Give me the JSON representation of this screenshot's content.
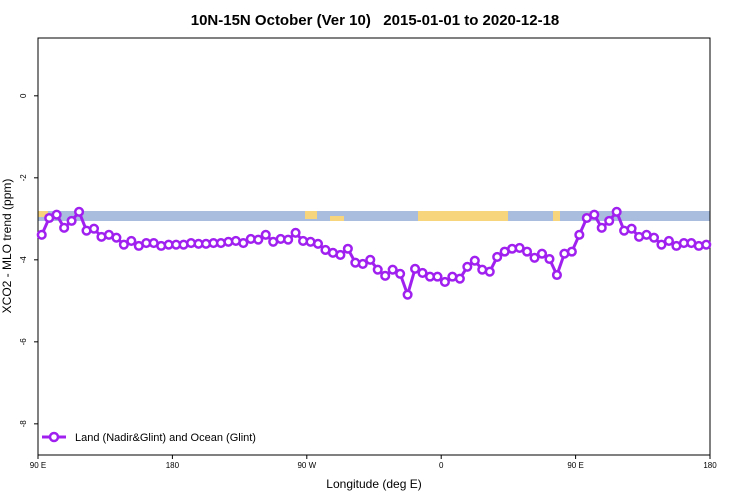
{
  "chart_data": {
    "type": "line",
    "title": "10N-15N October (Ver 10)   2015-01-01 to 2020-12-18",
    "x_label": "Longitude (deg E)",
    "y_label": "XCO2 - MLO trend (ppm)",
    "x": [
      92.5,
      97.5,
      102.5,
      107.5,
      112.5,
      117.5,
      122.5,
      127.5,
      132.5,
      137.5,
      142.5,
      147.5,
      152.5,
      157.5,
      162.5,
      167.5,
      172.5,
      177.5,
      182.5,
      187.5,
      192.5,
      197.5,
      202.5,
      207.5,
      212.5,
      217.5,
      222.5,
      227.5,
      232.5,
      237.5,
      242.5,
      247.5,
      252.5,
      257.5,
      262.5,
      267.5,
      272.5,
      277.5,
      282.5,
      287.5,
      292.5,
      297.5,
      302.5,
      307.5,
      312.5,
      317.5,
      322.5,
      327.5,
      332.5,
      337.5,
      342.5,
      347.5,
      352.5,
      357.5,
      362.5,
      367.5,
      372.5,
      377.5,
      382.5,
      387.5,
      392.5,
      397.5,
      402.5,
      407.5,
      412.5,
      417.5,
      422.5,
      427.5,
      432.5,
      437.5,
      442.5,
      447.5,
      452.5,
      457.5,
      462.5,
      467.5,
      472.5,
      477.5,
      482.5,
      487.5,
      492.5,
      497.5,
      502.5,
      507.5,
      512.5,
      517.5,
      522.5,
      527.5,
      532.5,
      537.5
    ],
    "series": [
      {
        "name": "Land (Nadir&Glint) and Ocean (Glint)",
        "color": "#a020f0",
        "values": [
          -3.39,
          -2.98,
          -2.9,
          -3.22,
          -3.05,
          -2.83,
          -3.29,
          -3.24,
          -3.44,
          -3.39,
          -3.46,
          -3.63,
          -3.54,
          -3.66,
          -3.59,
          -3.59,
          -3.66,
          -3.63,
          -3.63,
          -3.63,
          -3.59,
          -3.61,
          -3.61,
          -3.59,
          -3.59,
          -3.56,
          -3.54,
          -3.59,
          -3.49,
          -3.51,
          -3.39,
          -3.56,
          -3.49,
          -3.51,
          -3.34,
          -3.54,
          -3.56,
          -3.61,
          -3.76,
          -3.83,
          -3.88,
          -3.73,
          -4.07,
          -4.1,
          -4.0,
          -4.24,
          -4.39,
          -4.24,
          -4.34,
          -4.85,
          -4.22,
          -4.32,
          -4.41,
          -4.41,
          -4.54,
          -4.41,
          -4.46,
          -4.17,
          -4.02,
          -4.24,
          -4.29,
          -3.93,
          -3.8,
          -3.73,
          -3.71,
          -3.8,
          -3.95,
          -3.85,
          -3.98,
          -4.37,
          -3.85,
          -3.8,
          -3.39,
          -2.98,
          -2.9,
          -3.22,
          -3.05,
          -2.83,
          -3.29,
          -3.24,
          -3.44,
          -3.39,
          -3.46,
          -3.63,
          -3.54,
          -3.66,
          -3.59,
          -3.59,
          -3.66,
          -3.63
        ]
      }
    ],
    "xlim": [
      90,
      540
    ],
    "xticks": [
      {
        "value": 90,
        "label": "90 E"
      },
      180,
      {
        "value": 270,
        "label": "90 W"
      },
      {
        "value": 360,
        "label": "0"
      },
      {
        "value": 450,
        "label": "90 E"
      },
      {
        "value": 540,
        "label": "180"
      }
    ],
    "ylim": [
      -8.76,
      1.41
    ],
    "yticks": [
      0,
      -2,
      -4,
      -6,
      -8
    ],
    "legend": "bottom-left"
  }
}
